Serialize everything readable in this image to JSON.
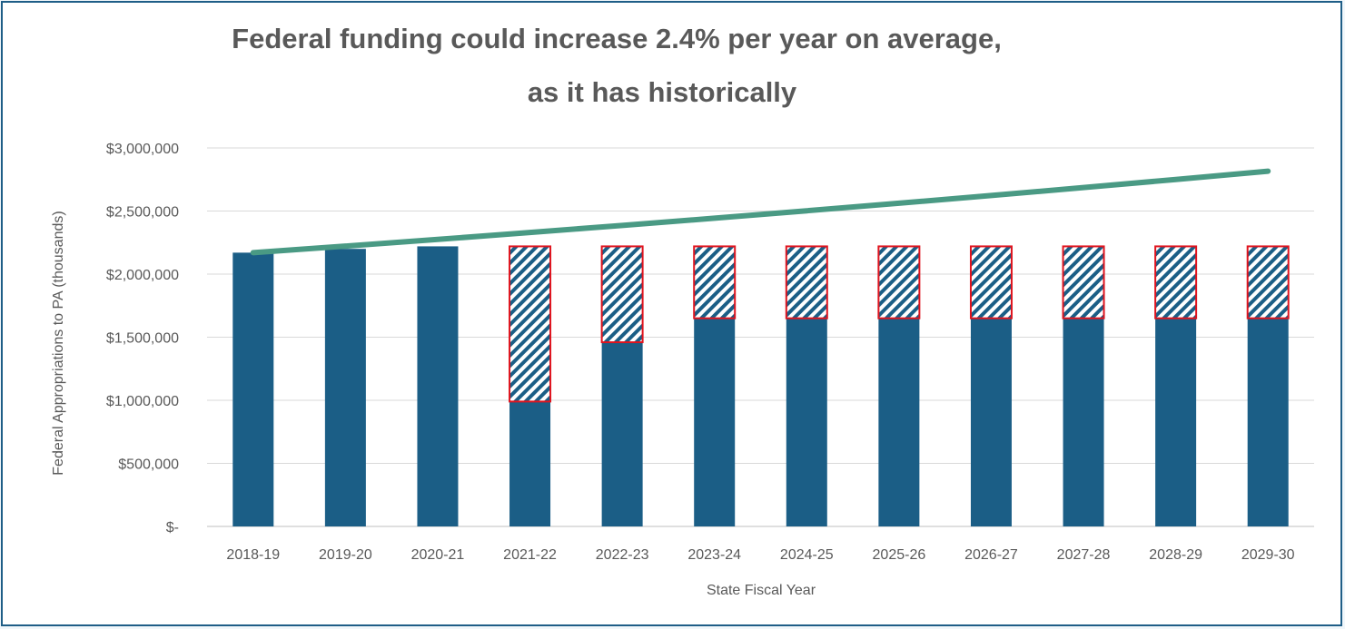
{
  "chart_data": {
    "type": "bar",
    "title_lines": [
      "Federal funding could increase 2.4% per year on average,",
      "as it has historically"
    ],
    "xlabel": "State Fiscal Year",
    "ylabel": "Federal Appropriations to PA (thousands)",
    "ylim": [
      0,
      3000000
    ],
    "y_ticks": [
      0,
      500000,
      1000000,
      1500000,
      2000000,
      2500000,
      3000000
    ],
    "y_tick_labels": [
      "$-",
      "$500,000",
      "$1,000,000",
      "$1,500,000",
      "$2,000,000",
      "$2,500,000",
      "$3,000,000"
    ],
    "grid": true,
    "categories": [
      "2018-19",
      "2019-20",
      "2020-21",
      "2021-22",
      "2022-23",
      "2023-24",
      "2024-25",
      "2025-26",
      "2026-27",
      "2027-28",
      "2028-29",
      "2029-30"
    ],
    "series": [
      {
        "kind": "bar",
        "color": "#1b5e86",
        "values": [
          2170000,
          2200000,
          2220000,
          990000,
          1460000,
          1650000,
          1650000,
          1650000,
          1650000,
          1650000,
          1650000,
          1650000
        ]
      },
      {
        "kind": "bar-stacked-hatched",
        "color": "#1b5e86",
        "border_color": "#e0141e",
        "values": [
          0,
          0,
          0,
          1230000,
          760000,
          570000,
          570000,
          570000,
          570000,
          570000,
          570000,
          570000
        ]
      },
      {
        "kind": "line",
        "color": "#4a9a84",
        "values": [
          2170000,
          2222000,
          2275000,
          2330000,
          2386000,
          2443000,
          2502000,
          2562000,
          2623000,
          2686000,
          2750000,
          2816000
        ]
      }
    ]
  }
}
